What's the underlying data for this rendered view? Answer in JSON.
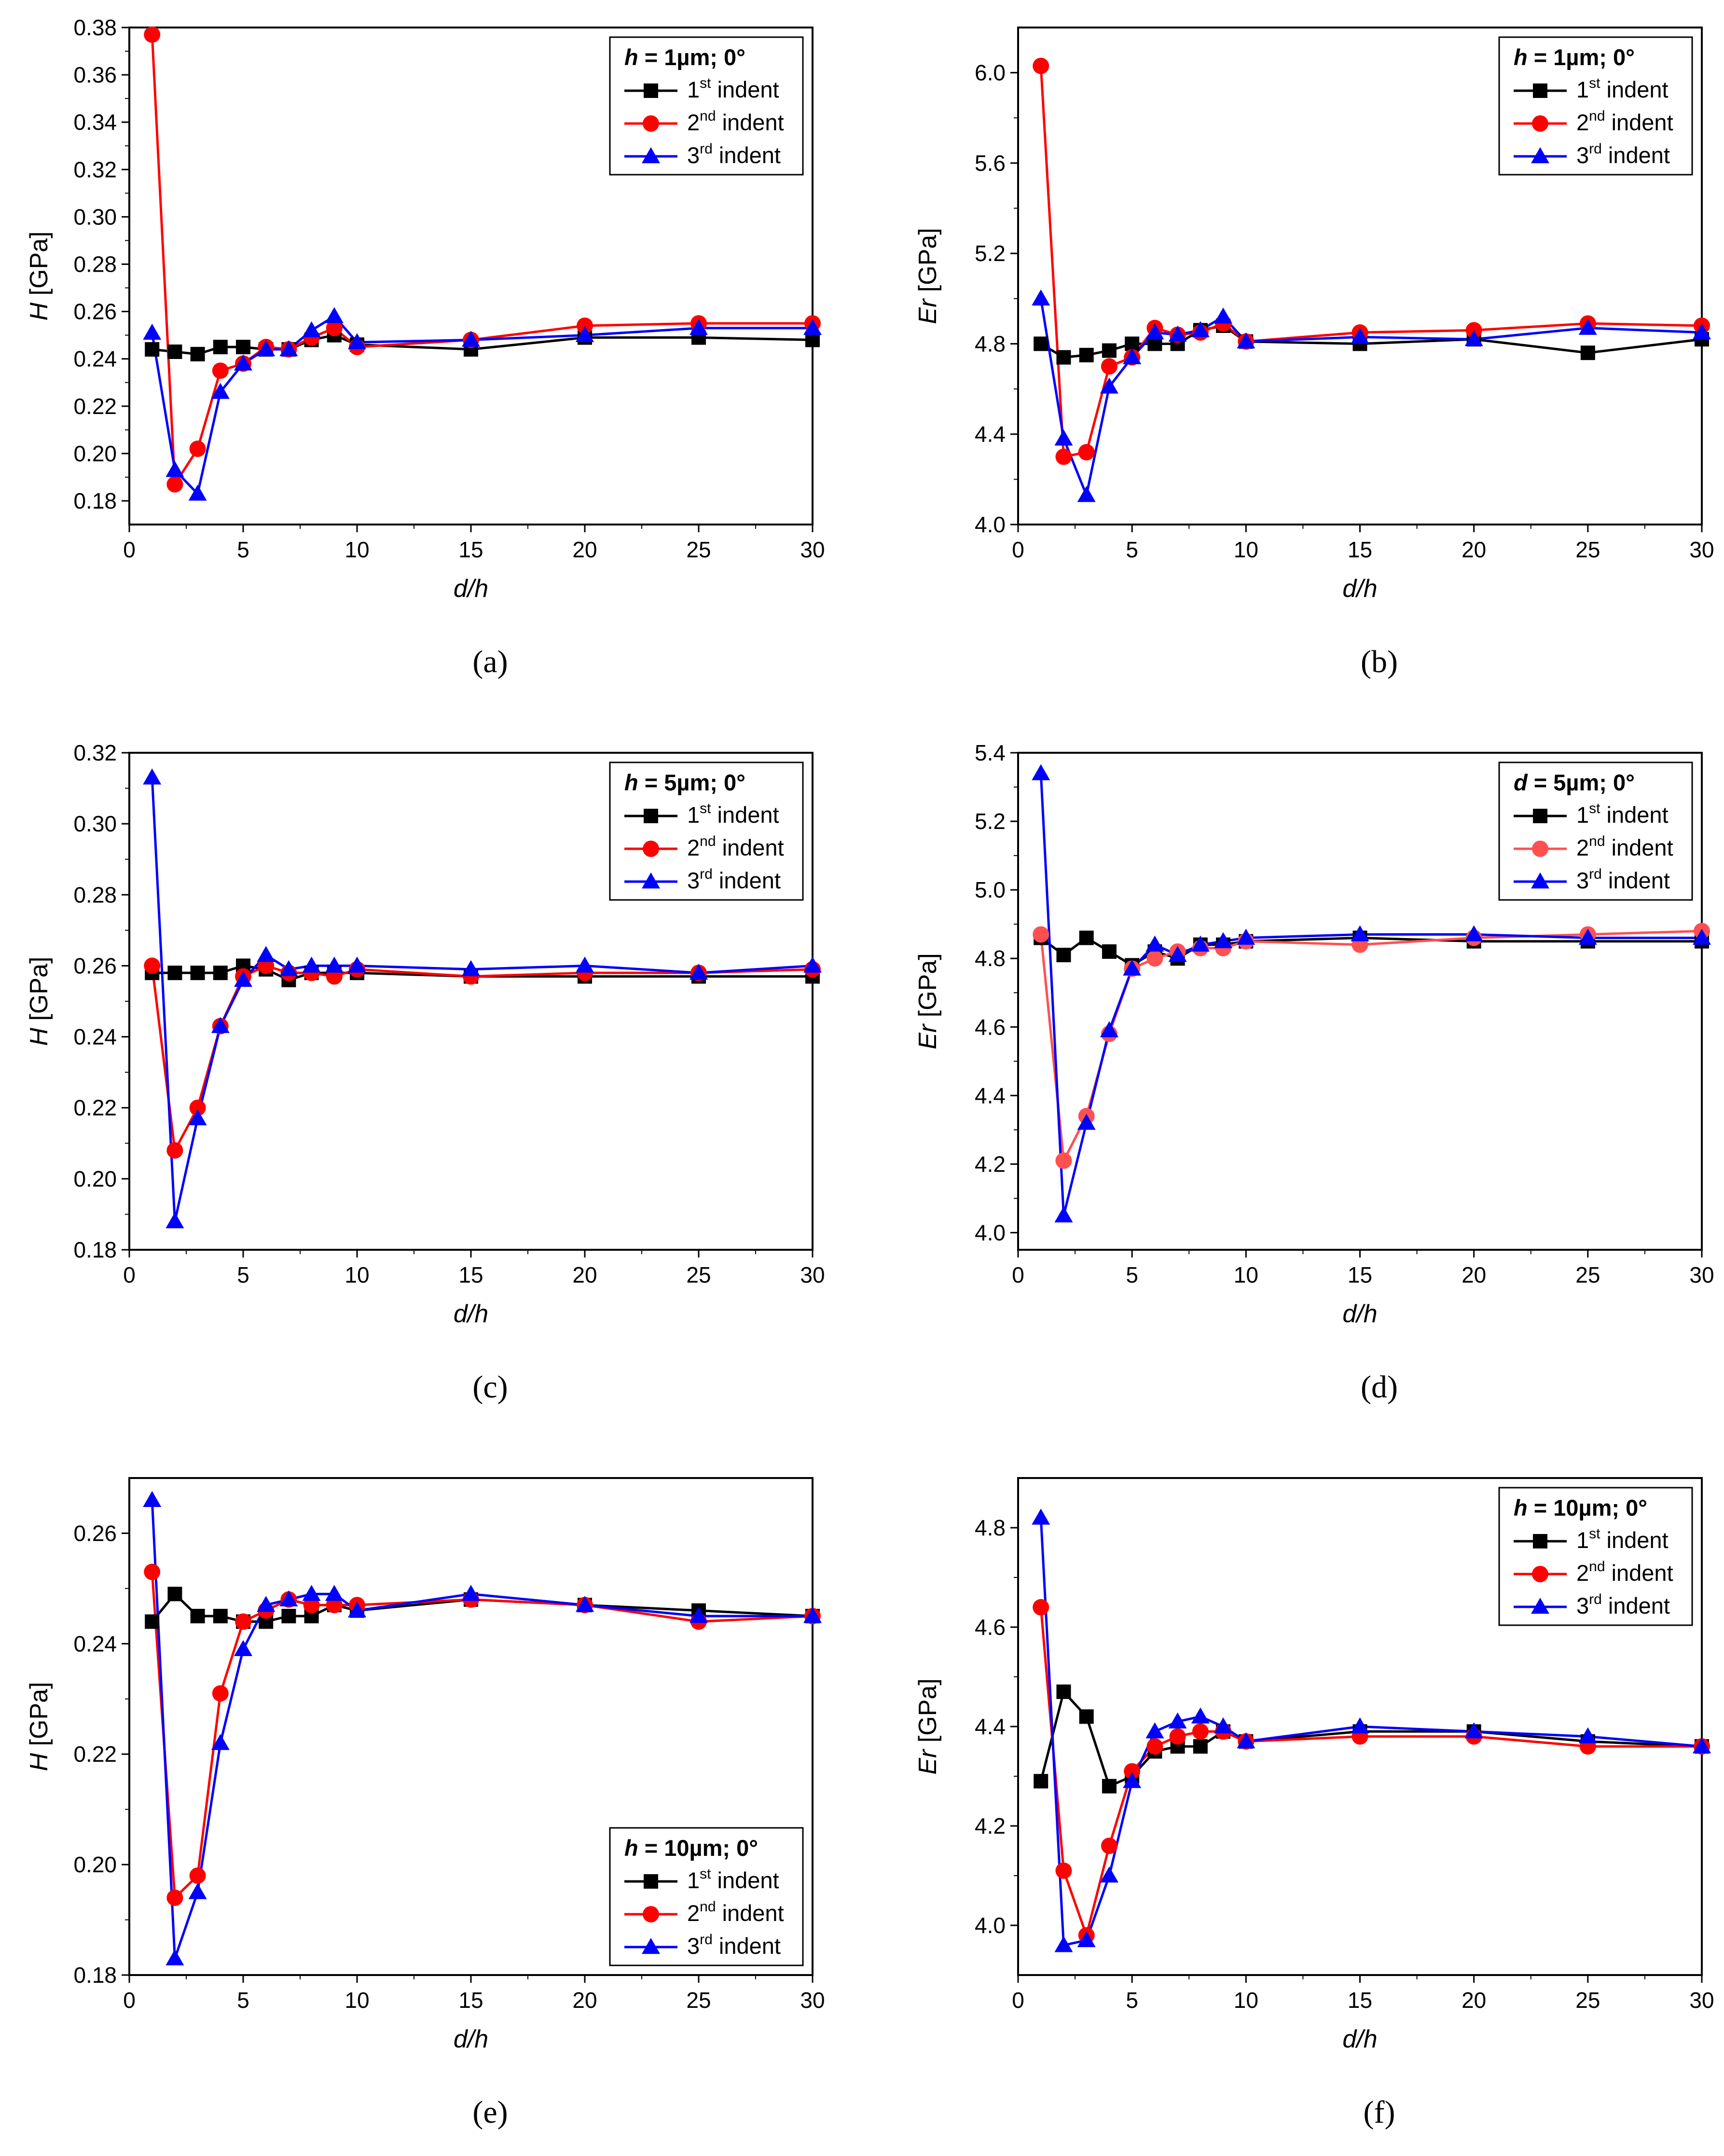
{
  "figure": {
    "panels": [
      "(a)",
      "(b)",
      "(c)",
      "(d)",
      "(e)",
      "(f)"
    ]
  },
  "colors": {
    "first": "#000000",
    "second": "#ff0000",
    "second_light": "#ff5050",
    "third": "#0000ff"
  },
  "chart_data": [
    {
      "type": "line",
      "panel": "(a)",
      "title": "",
      "xlabel": "d/h",
      "ylabel": "H [GPa]",
      "xlim": [
        0,
        30
      ],
      "ylim": [
        0.17,
        0.38
      ],
      "xticks": [
        0,
        5,
        10,
        15,
        20,
        25,
        30
      ],
      "yticks": [
        0.18,
        0.2,
        0.22,
        0.24,
        0.26,
        0.28,
        0.3,
        0.32,
        0.34,
        0.36,
        0.38
      ],
      "ytick_labels": [
        "0.18",
        "0.20",
        "0.22",
        "0.24",
        "0.26",
        "0.28",
        "0.30",
        "0.32",
        "0.34",
        "0.36",
        "0.38"
      ],
      "legend": {
        "position": "top-right",
        "title_bold": "h",
        "title_rest": " = 1µm; 0°"
      },
      "x": [
        1,
        2,
        3,
        4,
        5,
        6,
        7,
        8,
        9,
        10,
        15,
        20,
        25,
        30
      ],
      "series": [
        {
          "name": "1st indent",
          "sup": "st",
          "base": "1",
          "color": "#000000",
          "marker": "square",
          "values": [
            0.244,
            0.243,
            0.242,
            0.245,
            0.245,
            0.244,
            0.244,
            0.248,
            0.25,
            0.246,
            0.244,
            0.249,
            0.249,
            0.248
          ]
        },
        {
          "name": "2nd indent",
          "sup": "nd",
          "base": "2",
          "color": "#ff0000",
          "marker": "circle",
          "values": [
            0.377,
            0.187,
            0.202,
            0.235,
            0.238,
            0.245,
            0.244,
            0.249,
            0.253,
            0.245,
            0.248,
            0.254,
            0.255,
            0.255
          ]
        },
        {
          "name": "3rd indent",
          "sup": "rd",
          "base": "3",
          "color": "#0000ff",
          "marker": "triangle",
          "values": [
            0.251,
            0.193,
            0.183,
            0.226,
            0.238,
            0.244,
            0.244,
            0.252,
            0.258,
            0.247,
            0.248,
            0.25,
            0.253,
            0.253
          ]
        }
      ]
    },
    {
      "type": "line",
      "panel": "(b)",
      "title": "",
      "xlabel": "d/h",
      "ylabel": "Er [GPa]",
      "xlim": [
        0,
        30
      ],
      "ylim": [
        4.0,
        6.2
      ],
      "xticks": [
        0,
        5,
        10,
        15,
        20,
        25,
        30
      ],
      "yticks": [
        4.0,
        4.4,
        4.8,
        5.2,
        5.6,
        6.0
      ],
      "ytick_labels": [
        "4.0",
        "4.4",
        "4.8",
        "5.2",
        "5.6",
        "6.0"
      ],
      "legend": {
        "position": "top-right",
        "title_bold": "h",
        "title_rest": " = 1µm; 0°"
      },
      "x": [
        1,
        2,
        3,
        4,
        5,
        6,
        7,
        8,
        9,
        10,
        15,
        20,
        25,
        30
      ],
      "series": [
        {
          "name": "1st indent",
          "sup": "st",
          "base": "1",
          "color": "#000000",
          "marker": "square",
          "values": [
            4.8,
            4.74,
            4.75,
            4.77,
            4.8,
            4.8,
            4.8,
            4.86,
            4.88,
            4.81,
            4.8,
            4.82,
            4.76,
            4.82
          ]
        },
        {
          "name": "2nd indent",
          "sup": "nd",
          "base": "2",
          "color": "#ff0000",
          "marker": "circle",
          "values": [
            6.03,
            4.3,
            4.32,
            4.7,
            4.74,
            4.87,
            4.84,
            4.85,
            4.89,
            4.81,
            4.85,
            4.86,
            4.89,
            4.88
          ]
        },
        {
          "name": "3rd indent",
          "sup": "rd",
          "base": "3",
          "color": "#0000ff",
          "marker": "triangle",
          "values": [
            5.0,
            4.38,
            4.13,
            4.61,
            4.74,
            4.85,
            4.84,
            4.86,
            4.92,
            4.81,
            4.83,
            4.82,
            4.87,
            4.85
          ]
        }
      ]
    },
    {
      "type": "line",
      "panel": "(c)",
      "title": "",
      "xlabel": "d/h",
      "ylabel": "H [GPa]",
      "xlim": [
        0,
        30
      ],
      "ylim": [
        0.18,
        0.32
      ],
      "xticks": [
        0,
        5,
        10,
        15,
        20,
        25,
        30
      ],
      "yticks": [
        0.18,
        0.2,
        0.22,
        0.24,
        0.26,
        0.28,
        0.3,
        0.32
      ],
      "ytick_labels": [
        "0.18",
        "0.20",
        "0.22",
        "0.24",
        "0.26",
        "0.28",
        "0.30",
        "0.32"
      ],
      "legend": {
        "position": "top-right",
        "title_bold": "h",
        "title_rest": " = 5µm; 0°"
      },
      "x": [
        1,
        2,
        3,
        4,
        5,
        6,
        7,
        8,
        9,
        10,
        15,
        20,
        25,
        30
      ],
      "series": [
        {
          "name": "1st indent",
          "sup": "st",
          "base": "1",
          "color": "#000000",
          "marker": "square",
          "values": [
            0.258,
            0.258,
            0.258,
            0.258,
            0.26,
            0.259,
            0.256,
            0.258,
            0.258,
            0.258,
            0.257,
            0.257,
            0.257,
            0.257
          ]
        },
        {
          "name": "2nd indent",
          "sup": "nd",
          "base": "2",
          "color": "#ff0000",
          "marker": "circle",
          "values": [
            0.26,
            0.208,
            0.22,
            0.243,
            0.257,
            0.26,
            0.258,
            0.258,
            0.257,
            0.259,
            0.257,
            0.258,
            0.258,
            0.259
          ]
        },
        {
          "name": "3rd indent",
          "sup": "rd",
          "base": "3",
          "color": "#0000ff",
          "marker": "triangle",
          "values": [
            0.313,
            0.188,
            0.217,
            0.243,
            0.256,
            0.263,
            0.259,
            0.26,
            0.26,
            0.26,
            0.259,
            0.26,
            0.258,
            0.26
          ]
        }
      ]
    },
    {
      "type": "line",
      "panel": "(d)",
      "title": "",
      "xlabel": "d/h",
      "ylabel": "Er [GPa]",
      "xlim": [
        0,
        30
      ],
      "ylim": [
        3.95,
        5.4
      ],
      "xticks": [
        0,
        5,
        10,
        15,
        20,
        25,
        30
      ],
      "yticks": [
        4.0,
        4.2,
        4.4,
        4.6,
        4.8,
        5.0,
        5.2,
        5.4
      ],
      "ytick_labels": [
        "4.0",
        "4.2",
        "4.4",
        "4.6",
        "4.8",
        "5.0",
        "5.2",
        "5.4"
      ],
      "legend": {
        "position": "top-right",
        "title_bold": "d",
        "title_rest": " = 5µm; 0°"
      },
      "x": [
        1,
        2,
        3,
        4,
        5,
        6,
        7,
        8,
        9,
        10,
        15,
        20,
        25,
        30
      ],
      "series": [
        {
          "name": "1st indent",
          "sup": "st",
          "base": "1",
          "color": "#000000",
          "marker": "square",
          "values": [
            4.86,
            4.81,
            4.86,
            4.82,
            4.78,
            4.82,
            4.8,
            4.84,
            4.84,
            4.85,
            4.86,
            4.85,
            4.85,
            4.85
          ]
        },
        {
          "name": "2nd indent",
          "sup": "nd",
          "base": "2",
          "color": "#ff5050",
          "marker": "circle",
          "values": [
            4.87,
            4.21,
            4.34,
            4.58,
            4.77,
            4.8,
            4.82,
            4.83,
            4.83,
            4.85,
            4.84,
            4.86,
            4.87,
            4.88
          ]
        },
        {
          "name": "3rd indent",
          "sup": "rd",
          "base": "3",
          "color": "#0000ff",
          "marker": "triangle",
          "values": [
            5.34,
            4.05,
            4.32,
            4.59,
            4.77,
            4.84,
            4.81,
            4.84,
            4.85,
            4.86,
            4.87,
            4.87,
            4.86,
            4.86
          ]
        }
      ]
    },
    {
      "type": "line",
      "panel": "(e)",
      "title": "",
      "xlabel": "d/h",
      "ylabel": "H [GPa]",
      "xlim": [
        0,
        30
      ],
      "ylim": [
        0.18,
        0.27
      ],
      "xticks": [
        0,
        5,
        10,
        15,
        20,
        25,
        30
      ],
      "yticks": [
        0.18,
        0.2,
        0.22,
        0.24,
        0.26
      ],
      "ytick_labels": [
        "0.18",
        "0.20",
        "0.22",
        "0.24",
        "0.26"
      ],
      "legend": {
        "position": "bottom-right",
        "title_bold": "h",
        "title_rest": " = 10µm; 0°"
      },
      "x": [
        1,
        2,
        3,
        4,
        5,
        6,
        7,
        8,
        9,
        10,
        15,
        20,
        25,
        30
      ],
      "series": [
        {
          "name": "1st indent",
          "sup": "st",
          "base": "1",
          "color": "#000000",
          "marker": "square",
          "values": [
            0.244,
            0.249,
            0.245,
            0.245,
            0.244,
            0.244,
            0.245,
            0.245,
            0.247,
            0.246,
            0.248,
            0.247,
            0.246,
            0.245
          ]
        },
        {
          "name": "2nd indent",
          "sup": "nd",
          "base": "2",
          "color": "#ff0000",
          "marker": "circle",
          "values": [
            0.253,
            0.194,
            0.198,
            0.231,
            0.244,
            0.246,
            0.248,
            0.247,
            0.247,
            0.247,
            0.248,
            0.247,
            0.244,
            0.245
          ]
        },
        {
          "name": "3rd indent",
          "sup": "rd",
          "base": "3",
          "color": "#0000ff",
          "marker": "triangle",
          "values": [
            0.266,
            0.183,
            0.195,
            0.222,
            0.239,
            0.247,
            0.248,
            0.249,
            0.249,
            0.246,
            0.249,
            0.247,
            0.245,
            0.245
          ]
        }
      ]
    },
    {
      "type": "line",
      "panel": "(f)",
      "title": "",
      "xlabel": "d/h",
      "ylabel": "Er [GPa]",
      "xlim": [
        0,
        30
      ],
      "ylim": [
        3.9,
        4.9
      ],
      "xticks": [
        0,
        5,
        10,
        15,
        20,
        25,
        30
      ],
      "yticks": [
        4.0,
        4.2,
        4.4,
        4.6,
        4.8
      ],
      "ytick_labels": [
        "4.0",
        "4.2",
        "4.4",
        "4.6",
        "4.8"
      ],
      "legend": {
        "position": "top-right",
        "title_bold": "h",
        "title_rest": " = 10µm; 0°"
      },
      "x": [
        1,
        2,
        3,
        4,
        5,
        6,
        7,
        8,
        9,
        10,
        15,
        20,
        25,
        30
      ],
      "series": [
        {
          "name": "1st indent",
          "sup": "st",
          "base": "1",
          "color": "#000000",
          "marker": "square",
          "values": [
            4.29,
            4.47,
            4.42,
            4.28,
            4.3,
            4.35,
            4.36,
            4.36,
            4.39,
            4.37,
            4.39,
            4.39,
            4.37,
            4.36
          ]
        },
        {
          "name": "2nd indent",
          "sup": "nd",
          "base": "2",
          "color": "#ff0000",
          "marker": "circle",
          "values": [
            4.64,
            4.11,
            3.98,
            4.16,
            4.31,
            4.36,
            4.38,
            4.39,
            4.39,
            4.37,
            4.38,
            4.38,
            4.36,
            4.36
          ]
        },
        {
          "name": "3rd indent",
          "sup": "rd",
          "base": "3",
          "color": "#0000ff",
          "marker": "triangle",
          "values": [
            4.82,
            3.96,
            3.97,
            4.1,
            4.29,
            4.39,
            4.41,
            4.42,
            4.4,
            4.37,
            4.4,
            4.39,
            4.38,
            4.36
          ]
        }
      ]
    }
  ]
}
